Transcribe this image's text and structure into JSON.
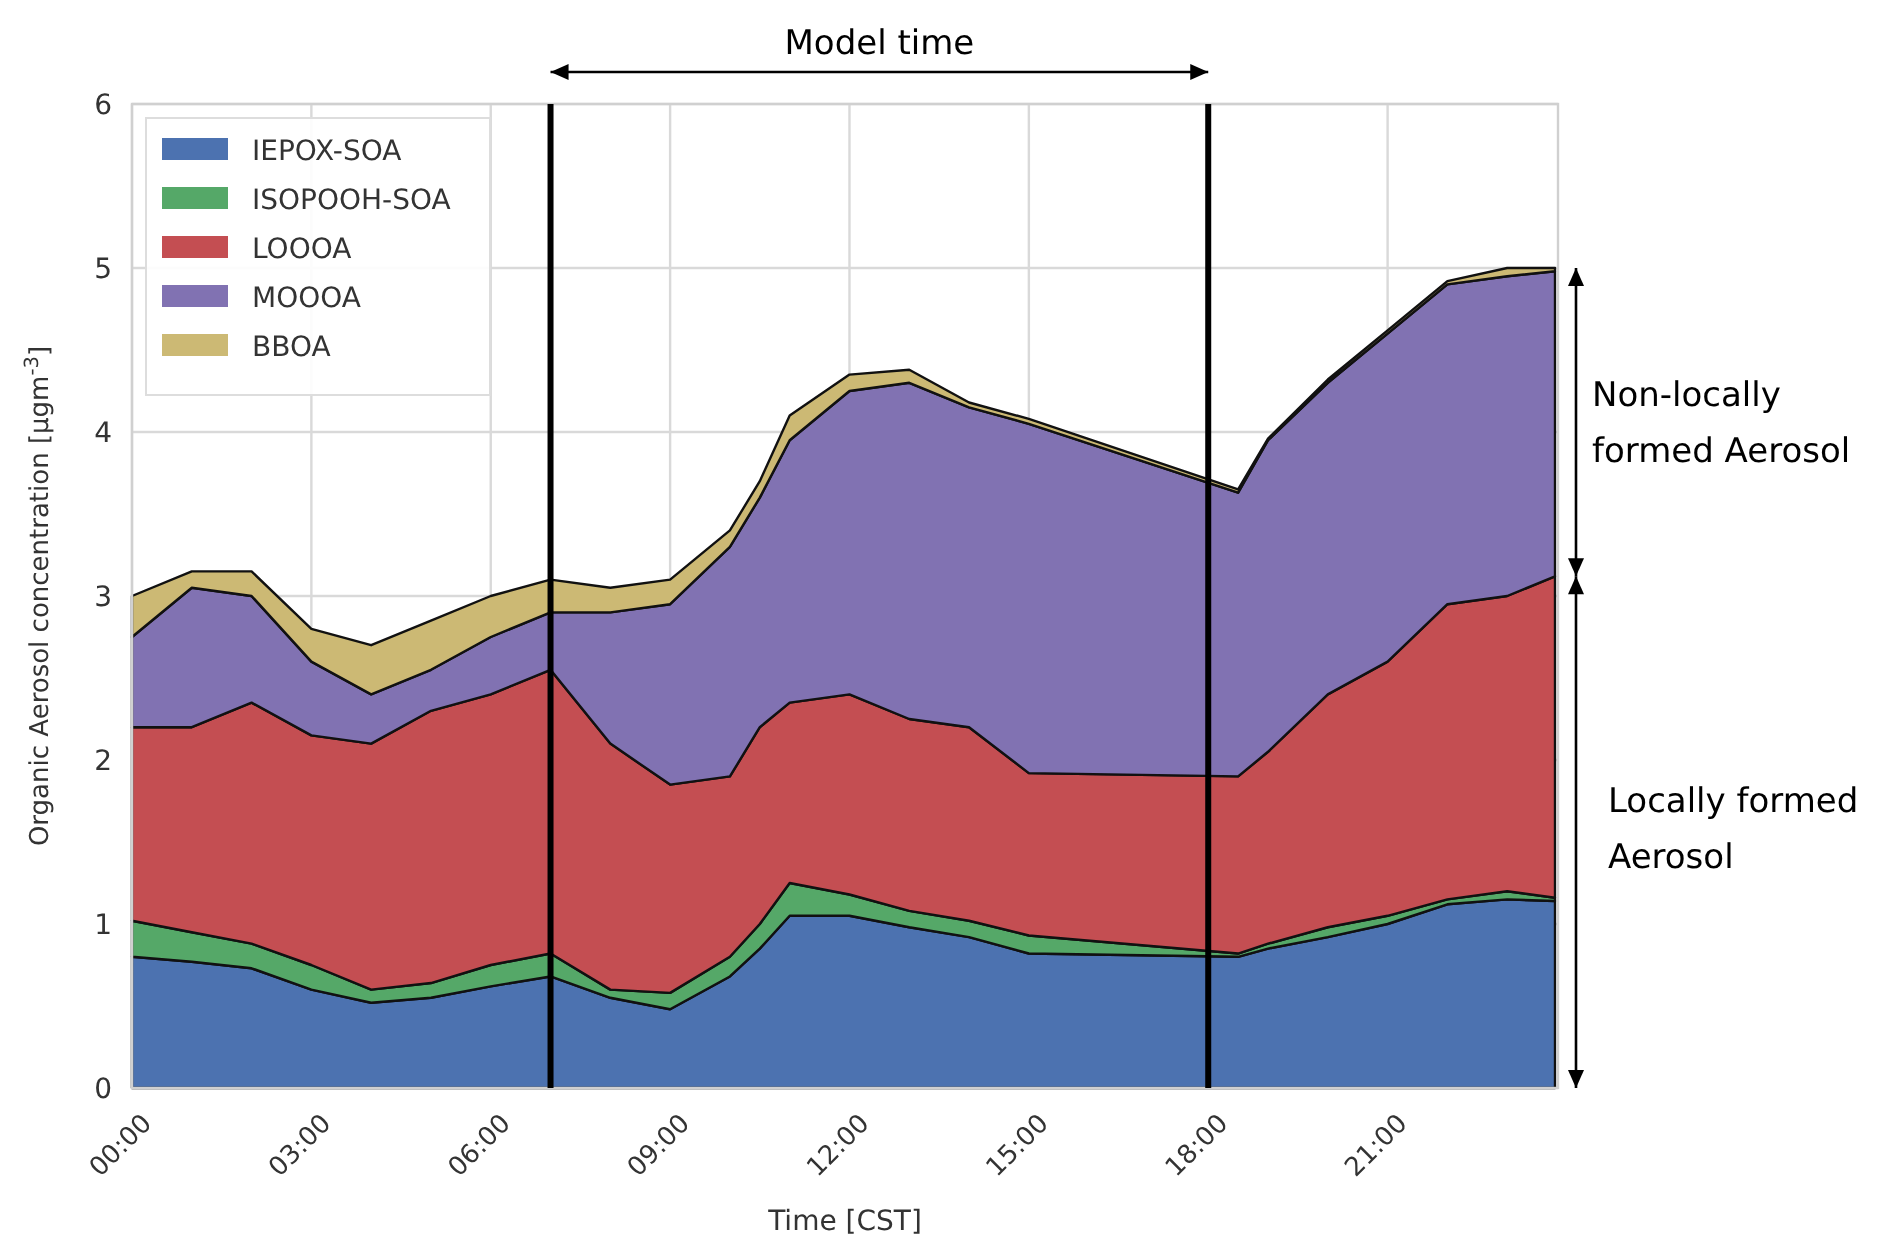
{
  "chart_data": {
    "type": "area",
    "stacked": true,
    "xlabel": "Time [CST]",
    "ylabel": "Organic Aerosol concentration [μgm$^{-3}$]",
    "x": [
      0,
      1,
      2,
      3,
      4,
      5,
      6,
      7,
      8,
      9,
      10,
      10.5,
      11,
      12,
      13,
      14,
      15,
      18.5,
      19,
      20,
      21,
      22,
      23,
      23.8
    ],
    "series": [
      {
        "name": "IEPOX-SOA",
        "color": "#4c72b0",
        "values": [
          0.8,
          0.77,
          0.73,
          0.6,
          0.52,
          0.55,
          0.62,
          0.68,
          0.55,
          0.48,
          0.68,
          0.85,
          1.05,
          1.05,
          0.98,
          0.92,
          0.82,
          0.8,
          0.85,
          0.92,
          1.0,
          1.12,
          1.15,
          1.14
        ]
      },
      {
        "name": "ISOPOOH-SOA",
        "color": "#55a868",
        "values": [
          0.22,
          0.18,
          0.15,
          0.15,
          0.08,
          0.09,
          0.13,
          0.14,
          0.05,
          0.1,
          0.12,
          0.15,
          0.2,
          0.13,
          0.1,
          0.1,
          0.11,
          0.02,
          0.03,
          0.06,
          0.05,
          0.03,
          0.05,
          0.02
        ]
      },
      {
        "name": "LOOOA",
        "color": "#c44e52",
        "values": [
          1.18,
          1.25,
          1.47,
          1.4,
          1.5,
          1.66,
          1.65,
          1.73,
          1.5,
          1.27,
          1.1,
          1.2,
          1.1,
          1.22,
          1.17,
          1.18,
          0.99,
          1.08,
          1.17,
          1.42,
          1.55,
          1.8,
          1.8,
          1.96
        ]
      },
      {
        "name": "MOOOA",
        "color": "#8172b2",
        "values": [
          0.55,
          0.85,
          0.65,
          0.45,
          0.3,
          0.25,
          0.35,
          0.35,
          0.8,
          1.1,
          1.4,
          1.4,
          1.6,
          1.85,
          2.05,
          1.95,
          2.13,
          1.73,
          1.9,
          1.9,
          2.0,
          1.95,
          1.95,
          1.86
        ]
      },
      {
        "name": "BBOA",
        "color": "#ccb974",
        "values": [
          0.25,
          0.1,
          0.15,
          0.2,
          0.3,
          0.3,
          0.25,
          0.2,
          0.15,
          0.15,
          0.1,
          0.1,
          0.15,
          0.1,
          0.08,
          0.03,
          0.03,
          0.02,
          0.01,
          0.02,
          0.02,
          0.02,
          0.05,
          0.02
        ]
      }
    ],
    "xlim": [
      0,
      23.85
    ],
    "xticks": [
      {
        "value": 0,
        "label": "00:00"
      },
      {
        "value": 3,
        "label": "03:00"
      },
      {
        "value": 6,
        "label": "06:00"
      },
      {
        "value": 9,
        "label": "09:00"
      },
      {
        "value": 12,
        "label": "12:00"
      },
      {
        "value": 15,
        "label": "15:00"
      },
      {
        "value": 18,
        "label": "18:00"
      },
      {
        "value": 21,
        "label": "21:00"
      }
    ],
    "ylim": [
      0,
      6
    ],
    "yticks": [
      0,
      1,
      2,
      3,
      4,
      5,
      6
    ],
    "grid": true,
    "legend": "top left",
    "ref_lines": [
      {
        "axis": "x",
        "value": 7,
        "color": "#000000"
      },
      {
        "axis": "x",
        "value": 18,
        "color": "#000000"
      }
    ],
    "annotations": [
      "Model time",
      "Non-locally formed Aerosol",
      "Locally formed Aerosol"
    ]
  }
}
